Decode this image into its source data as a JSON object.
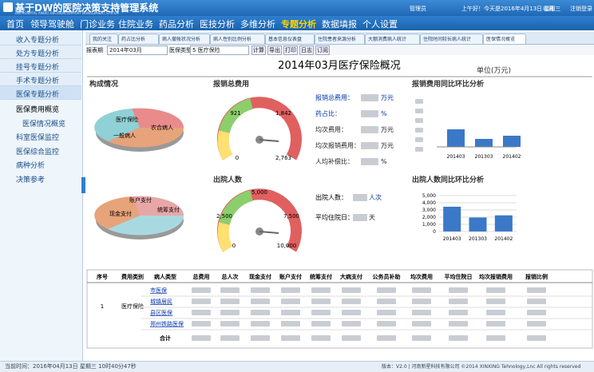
{
  "header": {
    "title": "基于DW的医院决策支持管理系统",
    "subtitle": "DW HOSPITAL AMBIO DECISION SUPPORT MANAGEMENT SYSTEM",
    "user": "管理员",
    "greeting": "上午好！今天是2016年4月13日 星期三",
    "favorite": "收藏",
    "logout": "注销登录"
  },
  "nav": [
    "首页",
    "领导驾驶舱",
    "门诊业务",
    "住院业务",
    "药品分析",
    "医技分析",
    "多维分析",
    "专题分析",
    "数据填报",
    "个人设置"
  ],
  "sidebar": {
    "groups": [
      "收入专题分析",
      "处方专题分析",
      "挂号专题分析",
      "手术专题分析",
      "医保专题分析"
    ],
    "items": [
      "医保费用概览",
      "医保情况概览",
      "科室医保监控",
      "医保综合监控",
      "病种分析",
      "决策参考"
    ]
  },
  "tabs": [
    "我的关注",
    "药占比分析",
    "病人撤帐状况分析",
    "病人性别比例分析",
    "基本信息仪表盘",
    "住院患者来源分析",
    "大额消费病人统计",
    "住院时间较长病人统计",
    "医保情况概览"
  ],
  "toolbar": {
    "period_label": "报表期",
    "period": "2014年03月",
    "type_label": "医保类型",
    "type": "5 医疗保险",
    "buttons": [
      "计算",
      "导出",
      "打印",
      "日志",
      "订阅"
    ]
  },
  "report": {
    "title": "2014年03月医疗保险概况",
    "unit": "单位(万元)",
    "composition": {
      "title": "构成情况",
      "pie1": [
        "医疗保险",
        "一般病人",
        "农合病人"
      ],
      "pie2": [
        "账户支付",
        "现金支付",
        "统筹支付"
      ]
    },
    "reimburse": {
      "title": "报销总费用",
      "gauge": [
        "921",
        "1,842",
        "0",
        "2,763"
      ],
      "stats": [
        "报销总费用：",
        "药占比：",
        "均次费用：",
        "均次报销费用：",
        "人均补偿比："
      ],
      "units": [
        "万元",
        "%",
        "万元",
        "万元",
        "%"
      ]
    },
    "reimburse_trend": {
      "title": "报销费用同比环比分析",
      "categories": [
        "201403",
        "201303",
        "201402"
      ]
    },
    "discharge": {
      "title": "出院人数",
      "gauge": [
        "5,000",
        "2,500",
        "7,500",
        "0",
        "10,000"
      ],
      "stats": [
        "出院人数：",
        "平均住院日："
      ],
      "units": [
        "人次",
        "天"
      ]
    },
    "discharge_trend": {
      "type": "bar",
      "title": "出院人数同比环比分析",
      "categories": [
        "201403",
        "201303",
        "201402"
      ],
      "values": [
        3450,
        1950,
        2250
      ],
      "color": "#3b78c8",
      "ylim": [
        0,
        5000
      ],
      "yticks": [
        0,
        {
          "value": 1000,
          "label": "1,000"
        },
        {
          "value": 2000,
          "label": "2,000"
        },
        {
          "value": 3000,
          "label": "3,000"
        },
        {
          "value": 4000,
          "label": "4,000"
        },
        {
          "value": 5000,
          "label": "5,000"
        }
      ]
    }
  },
  "table": {
    "headers": [
      "序号",
      "费用类别",
      "病人类型",
      "总费用",
      "总人次",
      "现金支付",
      "账户支付",
      "统筹支付",
      "大病支付",
      "公务员补助",
      "均次费用",
      "平均住院日",
      "均次报销费用",
      "报销比例"
    ],
    "index": "1",
    "category": "医疗保险",
    "types": [
      "市医保",
      "城镇居民",
      "县区医保",
      "郑州铁路医保"
    ],
    "total": "合计"
  },
  "footer": {
    "time": "当前时间：2016年04月13日 星期三 10时40分47秒",
    "copyright": "版本：V2.0 | 河南新星科技有限公司 ©2014 XINXING Tehnology,Lnc All rights reserved"
  }
}
